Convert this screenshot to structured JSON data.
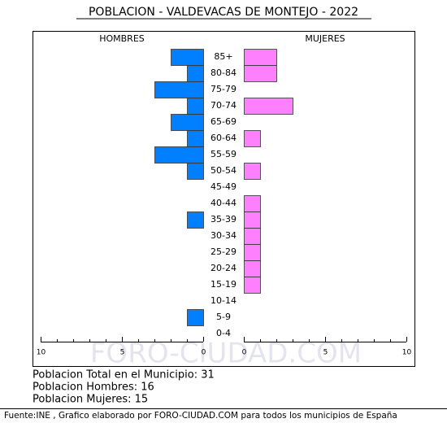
{
  "chart_data": {
    "type": "pyramid",
    "title": "POBLACION - VALDEVACAS DE MONTEJO - 2022",
    "watermark": "FORO-CIUDAD.COM",
    "categories": [
      "85+",
      "80-84",
      "75-79",
      "70-74",
      "65-69",
      "60-64",
      "55-59",
      "50-54",
      "45-49",
      "40-44",
      "35-39",
      "30-34",
      "25-29",
      "20-24",
      "15-19",
      "10-14",
      "5-9",
      "0-4"
    ],
    "series": [
      {
        "name": "HOMBRES",
        "color": "#0080ff",
        "values": [
          2,
          1,
          3,
          1,
          2,
          1,
          3,
          1,
          0,
          0,
          1,
          0,
          0,
          0,
          0,
          0,
          1,
          0
        ]
      },
      {
        "name": "MUJERES",
        "color": "#ff80ff",
        "values": [
          2,
          2,
          0,
          3,
          0,
          1,
          0,
          1,
          0,
          1,
          1,
          1,
          1,
          1,
          1,
          0,
          0,
          0
        ]
      }
    ],
    "xlim": [
      0,
      10
    ],
    "xticks": [
      0,
      5,
      10
    ]
  },
  "stats": [
    "Poblacion Total en el Municipio: 31",
    "Poblacion Hombres: 16",
    "Poblacion Mujeres: 15"
  ],
  "source": "Fuente:INE , Grafico elaborado por FORO-CIUDAD.COM para todos los municipios de España"
}
